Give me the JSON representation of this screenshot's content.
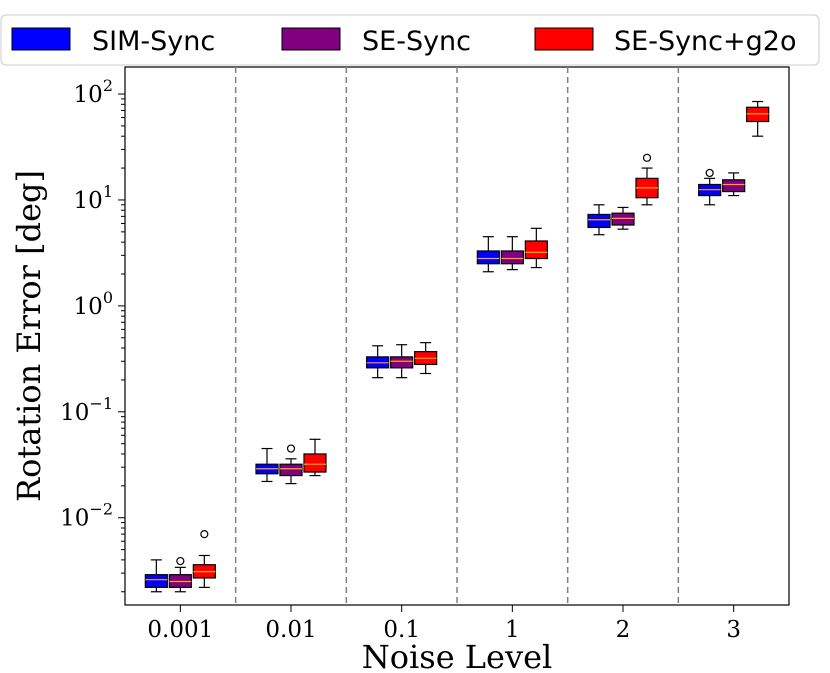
{
  "chart_data": {
    "type": "box",
    "title": "",
    "xlabel": "Noise Level",
    "ylabel": "Rotation Error [deg]",
    "yscale": "log",
    "ylim": [
      0.0015,
      180
    ],
    "categories": [
      "0.001",
      "0.01",
      "0.1",
      "1",
      "2",
      "3"
    ],
    "y_ticks": [
      {
        "value": 0.01,
        "base": "10",
        "exp": "−2"
      },
      {
        "value": 0.1,
        "base": "10",
        "exp": "−1"
      },
      {
        "value": 1,
        "base": "10",
        "exp": "0"
      },
      {
        "value": 10,
        "base": "10",
        "exp": "1"
      },
      {
        "value": 100,
        "base": "10",
        "exp": "2"
      }
    ],
    "grid": false,
    "category_separators": true,
    "legend": {
      "position": "top",
      "labels": [
        "SIM-Sync",
        "SE-Sync",
        "SE-Sync+g2o"
      ]
    },
    "series": [
      {
        "name": "SIM-Sync",
        "color": "#0000ff",
        "boxes": [
          {
            "whislo": 0.002,
            "q1": 0.0022,
            "med": 0.0026,
            "q3": 0.0029,
            "whishi": 0.004,
            "fliers": []
          },
          {
            "whislo": 0.022,
            "q1": 0.026,
            "med": 0.029,
            "q3": 0.032,
            "whishi": 0.045,
            "fliers": []
          },
          {
            "whislo": 0.21,
            "q1": 0.26,
            "med": 0.29,
            "q3": 0.33,
            "whishi": 0.42,
            "fliers": []
          },
          {
            "whislo": 2.1,
            "q1": 2.5,
            "med": 2.8,
            "q3": 3.3,
            "whishi": 4.5,
            "fliers": []
          },
          {
            "whislo": 4.7,
            "q1": 5.5,
            "med": 6.5,
            "q3": 7.3,
            "whishi": 9.0,
            "fliers": []
          },
          {
            "whislo": 9.0,
            "q1": 11.0,
            "med": 12.5,
            "q3": 14.0,
            "whishi": 16.0,
            "fliers": [
              18.0
            ]
          }
        ]
      },
      {
        "name": "SE-Sync",
        "color": "#800080",
        "boxes": [
          {
            "whislo": 0.002,
            "q1": 0.0022,
            "med": 0.0025,
            "q3": 0.0029,
            "whishi": 0.0034,
            "fliers": [
              0.0039
            ]
          },
          {
            "whislo": 0.021,
            "q1": 0.025,
            "med": 0.029,
            "q3": 0.032,
            "whishi": 0.036,
            "fliers": [
              0.045
            ]
          },
          {
            "whislo": 0.21,
            "q1": 0.26,
            "med": 0.3,
            "q3": 0.33,
            "whishi": 0.43,
            "fliers": []
          },
          {
            "whislo": 2.2,
            "q1": 2.5,
            "med": 2.8,
            "q3": 3.3,
            "whishi": 4.5,
            "fliers": []
          },
          {
            "whislo": 5.3,
            "q1": 5.8,
            "med": 6.7,
            "q3": 7.5,
            "whishi": 8.5,
            "fliers": []
          },
          {
            "whislo": 11.0,
            "q1": 12.0,
            "med": 14.0,
            "q3": 15.5,
            "whishi": 18.0,
            "fliers": []
          }
        ]
      },
      {
        "name": "SE-Sync+g2o",
        "color": "#ff0000",
        "boxes": [
          {
            "whislo": 0.0022,
            "q1": 0.0027,
            "med": 0.0031,
            "q3": 0.0036,
            "whishi": 0.0044,
            "fliers": [
              0.007
            ]
          },
          {
            "whislo": 0.025,
            "q1": 0.027,
            "med": 0.032,
            "q3": 0.04,
            "whishi": 0.055,
            "fliers": []
          },
          {
            "whislo": 0.23,
            "q1": 0.28,
            "med": 0.32,
            "q3": 0.37,
            "whishi": 0.45,
            "fliers": []
          },
          {
            "whislo": 2.3,
            "q1": 2.8,
            "med": 3.2,
            "q3": 4.1,
            "whishi": 5.4,
            "fliers": []
          },
          {
            "whislo": 9.0,
            "q1": 10.5,
            "med": 13.0,
            "q3": 16.0,
            "whishi": 20.0,
            "fliers": [
              25.0
            ]
          },
          {
            "whislo": 40.0,
            "q1": 55.0,
            "med": 65.0,
            "q3": 75.0,
            "whishi": 85.0,
            "fliers": []
          }
        ]
      }
    ]
  }
}
